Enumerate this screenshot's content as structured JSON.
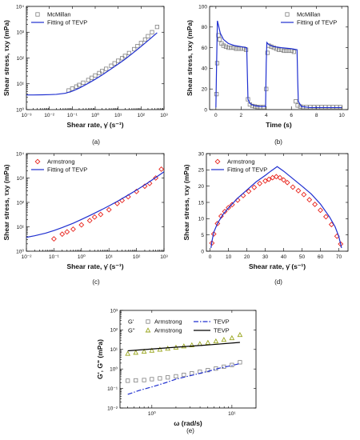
{
  "chart_data": [
    {
      "id": "a",
      "type": "scatter",
      "caption": "(a)",
      "xlabel": "Shear rate, γ̇ (s⁻¹)",
      "ylabel": "Shear stress, τxy (mPa)",
      "xscale": "log",
      "yscale": "log",
      "xlim": [
        0.001,
        1000
      ],
      "ylim": [
        1,
        10000
      ],
      "xticks": [
        "10⁻³",
        "10⁻²",
        "10⁻¹",
        "10⁰",
        "10¹",
        "10²",
        "10³"
      ],
      "yticks": [
        "10⁰",
        "10¹",
        "10²",
        "10³",
        "10⁴"
      ],
      "legend": "top-left",
      "series": [
        {
          "name": "McMillan",
          "kind": "marker",
          "marker": "square",
          "color": "#808080",
          "x": [
            0.07,
            0.1,
            0.15,
            0.2,
            0.3,
            0.5,
            0.7,
            1,
            1.5,
            2,
            3,
            5,
            7,
            10,
            15,
            20,
            30,
            50,
            70,
            100,
            150,
            200,
            300,
            500
          ],
          "y": [
            5.5,
            6.5,
            7.8,
            9,
            11,
            14,
            17,
            21,
            26,
            31,
            38,
            50,
            62,
            78,
            98,
            120,
            155,
            220,
            290,
            380,
            520,
            700,
            1000,
            1600
          ]
        },
        {
          "name": "Fitting of TEVP",
          "kind": "line",
          "color": "#1f2fd0",
          "x": [
            0.001,
            0.002,
            0.005,
            0.01,
            0.02,
            0.05,
            0.1,
            0.2,
            0.5,
            1,
            2,
            5,
            10,
            20,
            50,
            100,
            200,
            500
          ],
          "y": [
            3.7,
            3.7,
            3.75,
            3.8,
            3.9,
            4.3,
            5.2,
            6.8,
            10.5,
            15,
            22,
            38,
            58,
            90,
            170,
            280,
            470,
            950
          ]
        }
      ]
    },
    {
      "id": "b",
      "type": "scatter",
      "caption": "(b)",
      "xlabel": "Time (s)",
      "ylabel": "Shear stress, τxy (mPa)",
      "xscale": "linear",
      "yscale": "linear",
      "xlim": [
        -0.5,
        10.5
      ],
      "ylim": [
        0,
        100
      ],
      "xticks": [
        "0",
        "2",
        "4",
        "6",
        "8",
        "10"
      ],
      "yticks": [
        "0",
        "20",
        "40",
        "60",
        "80",
        "100"
      ],
      "legend": "top-right",
      "series": [
        {
          "name": "McMillan",
          "kind": "marker",
          "marker": "square",
          "color": "#808080",
          "x": [
            0.05,
            0.1,
            0.2,
            0.3,
            0.45,
            0.6,
            0.8,
            1.0,
            1.2,
            1.4,
            1.6,
            1.8,
            2.0,
            2.2,
            2.4,
            2.55,
            2.7,
            2.9,
            3.1,
            3.3,
            3.5,
            3.8,
            4.0,
            4.1,
            4.2,
            4.4,
            4.6,
            4.8,
            5.0,
            5.2,
            5.4,
            5.6,
            5.8,
            6.0,
            6.2,
            6.35,
            6.5,
            6.7,
            6.9,
            7.2,
            7.5,
            7.8,
            8.1,
            8.4,
            8.7,
            9.0,
            9.3,
            9.6,
            9.9
          ],
          "y": [
            15,
            45,
            72,
            68,
            64,
            62,
            61,
            60,
            60,
            60,
            59,
            59,
            59,
            59,
            58,
            10,
            5,
            3.5,
            3,
            2.5,
            2.5,
            2.5,
            20,
            55,
            62,
            61,
            60,
            59,
            58,
            58,
            57,
            57,
            57,
            57,
            56,
            8,
            4,
            3,
            2.5,
            2.5,
            2.5,
            2.5,
            2.5,
            2.5,
            2.5,
            2.5,
            2.5,
            2.5,
            2.5
          ]
        },
        {
          "name": "Fitting of TEVP",
          "kind": "line",
          "color": "#1f2fd0",
          "x": [
            0,
            0.05,
            0.12,
            0.2,
            0.35,
            0.6,
            1.0,
            1.5,
            2.0,
            2.45,
            2.5,
            2.55,
            2.7,
            3.0,
            3.5,
            3.95,
            4.0,
            4.05,
            4.2,
            4.6,
            5.2,
            6.0,
            6.45,
            6.5,
            6.55,
            6.8,
            7.5,
            8.5,
            10
          ],
          "y": [
            2,
            40,
            86,
            82,
            74,
            68,
            64,
            62,
            61,
            60,
            35,
            10,
            6,
            4,
            3,
            3,
            45,
            65,
            63,
            61,
            60,
            59,
            58,
            30,
            8,
            3,
            2,
            2,
            2
          ]
        }
      ]
    },
    {
      "id": "c",
      "type": "scatter",
      "caption": "(c)",
      "xlabel": "Shear rate, γ̇ (s⁻¹)",
      "ylabel": "Shear stress, τxy (mPa)",
      "xscale": "log",
      "yscale": "log",
      "xlim": [
        0.01,
        1000
      ],
      "ylim": [
        1,
        10000
      ],
      "xticks": [
        "10⁻²",
        "10⁻¹",
        "10⁰",
        "10¹",
        "10²",
        "10³"
      ],
      "yticks": [
        "10⁰",
        "10¹",
        "10²",
        "10³",
        "10⁴"
      ],
      "legend": "top-left",
      "series": [
        {
          "name": "Armstrong",
          "kind": "marker",
          "marker": "diamond",
          "color": "#e8231c",
          "x": [
            0.1,
            0.2,
            0.3,
            0.5,
            1,
            2,
            3,
            5,
            10,
            20,
            30,
            50,
            100,
            200,
            300,
            500,
            800
          ],
          "y": [
            3.2,
            5,
            6.2,
            8,
            12,
            18,
            25,
            32,
            50,
            90,
            120,
            170,
            280,
            460,
            600,
            1000,
            2300
          ]
        },
        {
          "name": "Fitting of TEVP",
          "kind": "line",
          "color": "#1f2fd0",
          "x": [
            0.01,
            0.02,
            0.05,
            0.1,
            0.2,
            0.5,
            1,
            2,
            5,
            10,
            20,
            50,
            100,
            200,
            500,
            1000
          ],
          "y": [
            3.7,
            4.3,
            5.5,
            7,
            9.3,
            14,
            20,
            29,
            48,
            72,
            110,
            200,
            320,
            520,
            1050,
            1800
          ]
        }
      ]
    },
    {
      "id": "d",
      "type": "scatter",
      "caption": "(d)",
      "xlabel": "Shear rate, γ̇ (s⁻¹)",
      "ylabel": "Shear stress, τxy (mPa)",
      "xscale": "linear",
      "yscale": "linear",
      "xlim": [
        -2,
        75
      ],
      "ylim": [
        0,
        30
      ],
      "xticks": [
        "0",
        "10",
        "20",
        "30",
        "40",
        "50",
        "60",
        "70"
      ],
      "yticks": [
        "0",
        "5",
        "10",
        "15",
        "20",
        "25",
        "30"
      ],
      "legend": "top-left",
      "series": [
        {
          "name": "Armstrong",
          "kind": "marker",
          "marker": "diamond",
          "color": "#e8231c",
          "x": [
            1,
            2,
            4,
            6,
            8,
            10,
            12,
            15,
            18,
            21,
            24,
            27,
            30,
            32,
            34,
            36,
            38,
            40,
            42,
            45,
            48,
            51,
            54,
            57,
            60,
            63,
            66,
            69,
            71
          ],
          "y": [
            2.5,
            5.3,
            8.5,
            10.8,
            12.2,
            13.4,
            14.3,
            15.7,
            17.1,
            18.4,
            19.6,
            20.8,
            21.6,
            22.1,
            22.6,
            22.9,
            22.6,
            21.9,
            21.1,
            19.7,
            18.6,
            17.4,
            15.8,
            14.4,
            12.6,
            10.6,
            8.2,
            4.6,
            2.2
          ]
        },
        {
          "name": "Fitting of TEVP",
          "kind": "line",
          "color": "#1f2fd0",
          "x": [
            0.5,
            1,
            2,
            4,
            7,
            10,
            15,
            20,
            25,
            30,
            33,
            36.5,
            40,
            45,
            50,
            55,
            60,
            65,
            68,
            70,
            71.5
          ],
          "y": [
            1,
            3,
            5.8,
            8.5,
            11.3,
            13.3,
            16.3,
            18.8,
            21.3,
            23.3,
            24.6,
            26,
            24.6,
            22.3,
            20,
            17.6,
            14.5,
            10.5,
            7.5,
            4.5,
            1
          ]
        }
      ]
    },
    {
      "id": "e",
      "type": "scatter",
      "caption": "(e)",
      "xlabel": "ω (rad/s)",
      "ylabel": "G', G\" (mPa)",
      "xscale": "log",
      "yscale": "log",
      "xlim": [
        0.4,
        20
      ],
      "ylim": [
        0.01,
        1000
      ],
      "xticks": [
        "10⁰",
        "10¹"
      ],
      "yticks": [
        "10⁻²",
        "10⁻¹",
        "10⁰",
        "10¹",
        "10²",
        "10³"
      ],
      "legend": "top-left",
      "legend_rows": [
        {
          "label": "G'",
          "data": "Armstrong",
          "model": "TEVP"
        },
        {
          "label": "G\"",
          "data": "Armstrong",
          "model": "TEVP"
        }
      ],
      "series": [
        {
          "name": "G' Armstrong",
          "kind": "marker",
          "marker": "square",
          "color": "#808080",
          "x": [
            0.5,
            0.63,
            0.8,
            1.0,
            1.26,
            1.58,
            2.0,
            2.51,
            3.16,
            3.98,
            5.01,
            6.31,
            7.94,
            10,
            12.6
          ],
          "y": [
            0.25,
            0.26,
            0.27,
            0.3,
            0.33,
            0.37,
            0.42,
            0.5,
            0.6,
            0.72,
            0.87,
            1.05,
            1.3,
            1.6,
            2.2
          ]
        },
        {
          "name": "G\" Armstrong",
          "kind": "marker",
          "marker": "triangle",
          "color": "#9aa61e",
          "x": [
            0.5,
            0.63,
            0.8,
            1.0,
            1.26,
            1.58,
            2.0,
            2.51,
            3.16,
            3.98,
            5.01,
            6.31,
            7.94,
            10,
            12.6
          ],
          "y": [
            6,
            6.8,
            7.7,
            8.7,
            9.8,
            11,
            12.5,
            14.5,
            16.5,
            19,
            22,
            26,
            31,
            38,
            55
          ]
        },
        {
          "name": "G' TEVP",
          "kind": "line",
          "dash": "6 2 1.5 2",
          "color": "#1f2fd0",
          "x": [
            0.5,
            0.7,
            1.0,
            1.5,
            2.0,
            3.0,
            5.0,
            7.0,
            10,
            12.6
          ],
          "y": [
            0.05,
            0.08,
            0.12,
            0.2,
            0.3,
            0.45,
            0.75,
            1.1,
            1.5,
            1.9
          ]
        },
        {
          "name": "G\" TEVP",
          "kind": "line",
          "color": "#000000",
          "x": [
            0.5,
            1.0,
            2.0,
            5.0,
            12.6
          ],
          "y": [
            8.5,
            10.5,
            13,
            17,
            23
          ]
        }
      ]
    }
  ]
}
